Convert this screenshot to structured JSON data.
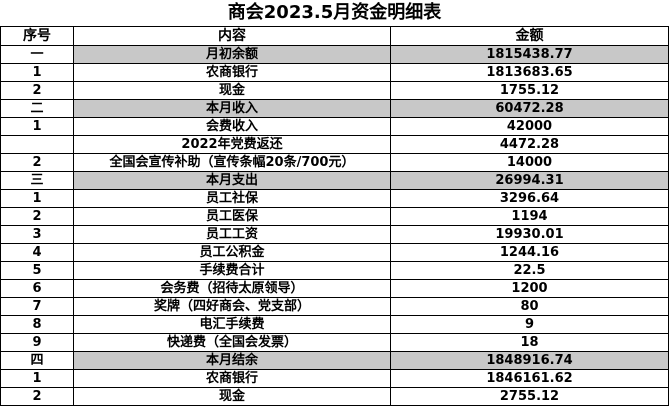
{
  "title": "商会2023.5月资金明细表",
  "header": [
    "序号",
    "内容",
    "金额"
  ],
  "rows": [
    {
      "no": "一",
      "item": "月初余额",
      "amount": "1815438.77",
      "shaded": true
    },
    {
      "no": "1",
      "item": "农商银行",
      "amount": "1813683.65"
    },
    {
      "no": "2",
      "item": "现金",
      "amount": "1755.12"
    },
    {
      "no": "二",
      "item": "本月收入",
      "amount": "60472.28",
      "shaded": true
    },
    {
      "no": "1",
      "item": "会费收入",
      "amount": "42000"
    },
    {
      "no": null,
      "item": "2022年党费返还",
      "amount": "4472.28"
    },
    {
      "no": "2",
      "item": "全国会宣传补助（宣传条幅20条/700元）",
      "amount": "14000"
    },
    {
      "no": "三",
      "item": "本月支出",
      "amount": "26994.31",
      "shaded": true
    },
    {
      "no": "1",
      "item": "员工社保",
      "amount": "3296.64"
    },
    {
      "no": "2",
      "item": "员工医保",
      "amount": "1194"
    },
    {
      "no": "3",
      "item": "员工工资",
      "amount": "19930.01"
    },
    {
      "no": "4",
      "item": "员工公积金",
      "amount": "1244.16"
    },
    {
      "no": "5",
      "item": "手续费合计",
      "amount": "22.5"
    },
    {
      "no": "6",
      "item": "会务费（招待太原领导）",
      "amount": "1200"
    },
    {
      "no": "7",
      "item": "奖牌（四好商会、党支部）",
      "amount": "80"
    },
    {
      "no": "8",
      "item": "电汇手续费",
      "amount": "9"
    },
    {
      "no": "9",
      "item": "快递费（全国会发票）",
      "amount": "18"
    },
    {
      "no": "四",
      "item": "本月结余",
      "amount": "1848916.74",
      "shaded": true
    },
    {
      "no": "1",
      "item": "农商银行",
      "amount": "1846161.62"
    },
    {
      "no": "2",
      "item": "现金",
      "amount": "2755.12"
    }
  ]
}
